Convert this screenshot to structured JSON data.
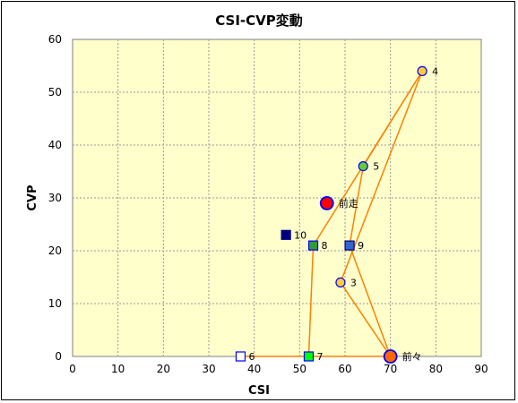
{
  "chart_data": {
    "type": "scatter",
    "title": "CSI-CVP変動",
    "xlabel": "CSI",
    "ylabel": "CVP",
    "xlim": [
      0,
      90
    ],
    "ylim": [
      0,
      60
    ],
    "xticks": [
      0,
      10,
      20,
      30,
      40,
      50,
      60,
      70,
      80,
      90
    ],
    "yticks": [
      0,
      10,
      20,
      30,
      40,
      50,
      60
    ],
    "grid": true,
    "legend": "none",
    "plot_background": "#ffffcc",
    "line_color": "#ff8000",
    "points": [
      {
        "label": "前々",
        "x": 70,
        "y": 0,
        "marker": "circle-large",
        "fill": "#ff6600",
        "stroke": "#0000ff"
      },
      {
        "label": "3",
        "x": 59,
        "y": 14,
        "marker": "circle",
        "fill": "#ffcc33",
        "stroke": "#0000ff"
      },
      {
        "label": "4",
        "x": 77,
        "y": 54,
        "marker": "circle",
        "fill": "#ffcc33",
        "stroke": "#0000ff"
      },
      {
        "label": "5",
        "x": 64,
        "y": 36,
        "marker": "circle",
        "fill": "#66cc33",
        "stroke": "#0000ff"
      },
      {
        "label": "6",
        "x": 37,
        "y": 0,
        "marker": "square",
        "fill": "#ffffff",
        "stroke": "#0000ff"
      },
      {
        "label": "7",
        "x": 52,
        "y": 0,
        "marker": "square",
        "fill": "#00ff00",
        "stroke": "#0000ff"
      },
      {
        "label": "8",
        "x": 53,
        "y": 21,
        "marker": "square",
        "fill": "#339933",
        "stroke": "#0000ff"
      },
      {
        "label": "9",
        "x": 61,
        "y": 21,
        "marker": "square",
        "fill": "#3366cc",
        "stroke": "#000080"
      },
      {
        "label": "10",
        "x": 47,
        "y": 23,
        "marker": "square",
        "fill": "#000080",
        "stroke": "#000080"
      },
      {
        "label": "前走",
        "x": 56,
        "y": 29,
        "marker": "circle-large",
        "fill": "#ff0000",
        "stroke": "#0000ff"
      }
    ],
    "path_order": [
      "前々",
      "3",
      "4",
      "5",
      "9",
      "前々",
      "6",
      "7",
      "8",
      "4"
    ]
  }
}
